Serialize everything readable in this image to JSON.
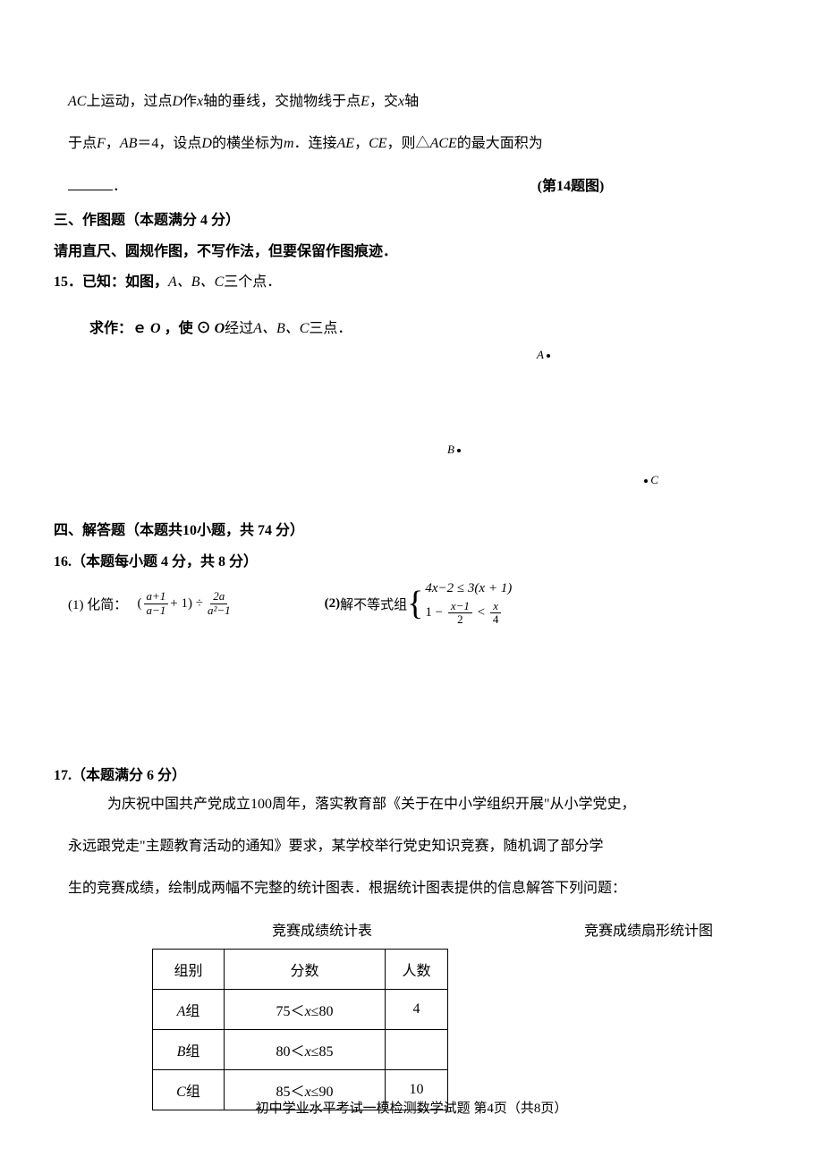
{
  "q14": {
    "line1_pre": "AC",
    "line1_rest": "上运动，过点",
    "line1_D": "D",
    "line1_mid": "作",
    "line1_x1": "x",
    "line1_after_x1": "轴的垂线，交抛物线于点",
    "line1_E": "E",
    "line1_comma": "，交",
    "line1_x2": "x",
    "line1_tail": "轴",
    "line2_pre": "于点",
    "line2_F": "F",
    "line2_comma1": "，",
    "line2_AB": "AB",
    "line2_eq": "＝4，设点",
    "line2_D": "D",
    "line2_mid": "的横坐标为",
    "line2_m": "m",
    "line2_after": "．连接",
    "line2_AE": "AE",
    "line2_c2": "，",
    "line2_CE": "CE",
    "line2_c3": "，则△",
    "line2_ACE": "ACE",
    "line2_tail": "的最大面积为",
    "caption": "(第14题图)"
  },
  "s3": {
    "header": "三、作图题（本题满分 4 分）",
    "rule": "请用直尺、圆规作图，不写作法，但要保留作图痕迹．"
  },
  "q15": {
    "label": "15．已知：如图，",
    "ABC": "A、B、C",
    "tail": "三个点．",
    "req_label": "求作：ｅ",
    "O": "O",
    "req_mid": " ，使 ⊙ ",
    "O2": "O",
    "req_after": "经过",
    "ABC2": "A、B、C",
    "req_tail": "三点．",
    "ptA": "A",
    "ptB": "B",
    "ptC": "C"
  },
  "s4": {
    "header": "四、解答题（本题共10小题，共 74 分）"
  },
  "q16": {
    "label": "16.（本题每小题 4 分，共 8 分）",
    "p1_label": "(1)  化简：",
    "p1_frac1_num": "a+1",
    "p1_frac1_den": "a−1",
    "p1_plus": " + 1)   ÷ ",
    "p1_frac2_num": "2a",
    "p1_frac2_den": "a²−1",
    "p2_label": "(2)",
    "p2_text": "  解不等式组",
    "p2_line1_a": "4x−2 ≤ 3(x + 1)",
    "p2_line2_pre": "1 − ",
    "p2_f1_num": "x−1",
    "p2_f1_den": "2",
    "p2_lt": " < ",
    "p2_f2_num": "x",
    "p2_f2_den": "4"
  },
  "q17": {
    "label": "17.（本题满分 6 分）",
    "p1": "为庆祝中国共产党成立100周年，落实教育部《关于在中小学组织开展\"从小学党史，",
    "p2": "永远跟党走\"主题教育活动的通知》要求，某学校举行党史知识竞赛，随机调了部分学",
    "p3": "生的竞赛成绩，绘制成两幅不完整的统计图表．根据统计图表提供的信息解答下列问题：",
    "table_title": "竞赛成绩统计表",
    "chart_title": "竞赛成绩扇形统计图",
    "table": {
      "columns": [
        "组别",
        "分数",
        "人数"
      ],
      "rows": [
        {
          "group_pre": "A",
          "group_suf": "组",
          "score_pre": "75＜",
          "score_var": "x",
          "score_post": "≤80",
          "count": "4"
        },
        {
          "group_pre": "B",
          "group_suf": "组",
          "score_pre": "80＜",
          "score_var": "x",
          "score_post": "≤85",
          "count": ""
        },
        {
          "group_pre": "C",
          "group_suf": "组",
          "score_pre": "85＜",
          "score_var": "x",
          "score_post": "≤90",
          "count": "10"
        }
      ]
    }
  },
  "footer": "初中学业水平考试一模检测数学试题  第4页（共8页）",
  "colors": {
    "text": "#000000",
    "bg": "#ffffff",
    "border": "#000000"
  }
}
